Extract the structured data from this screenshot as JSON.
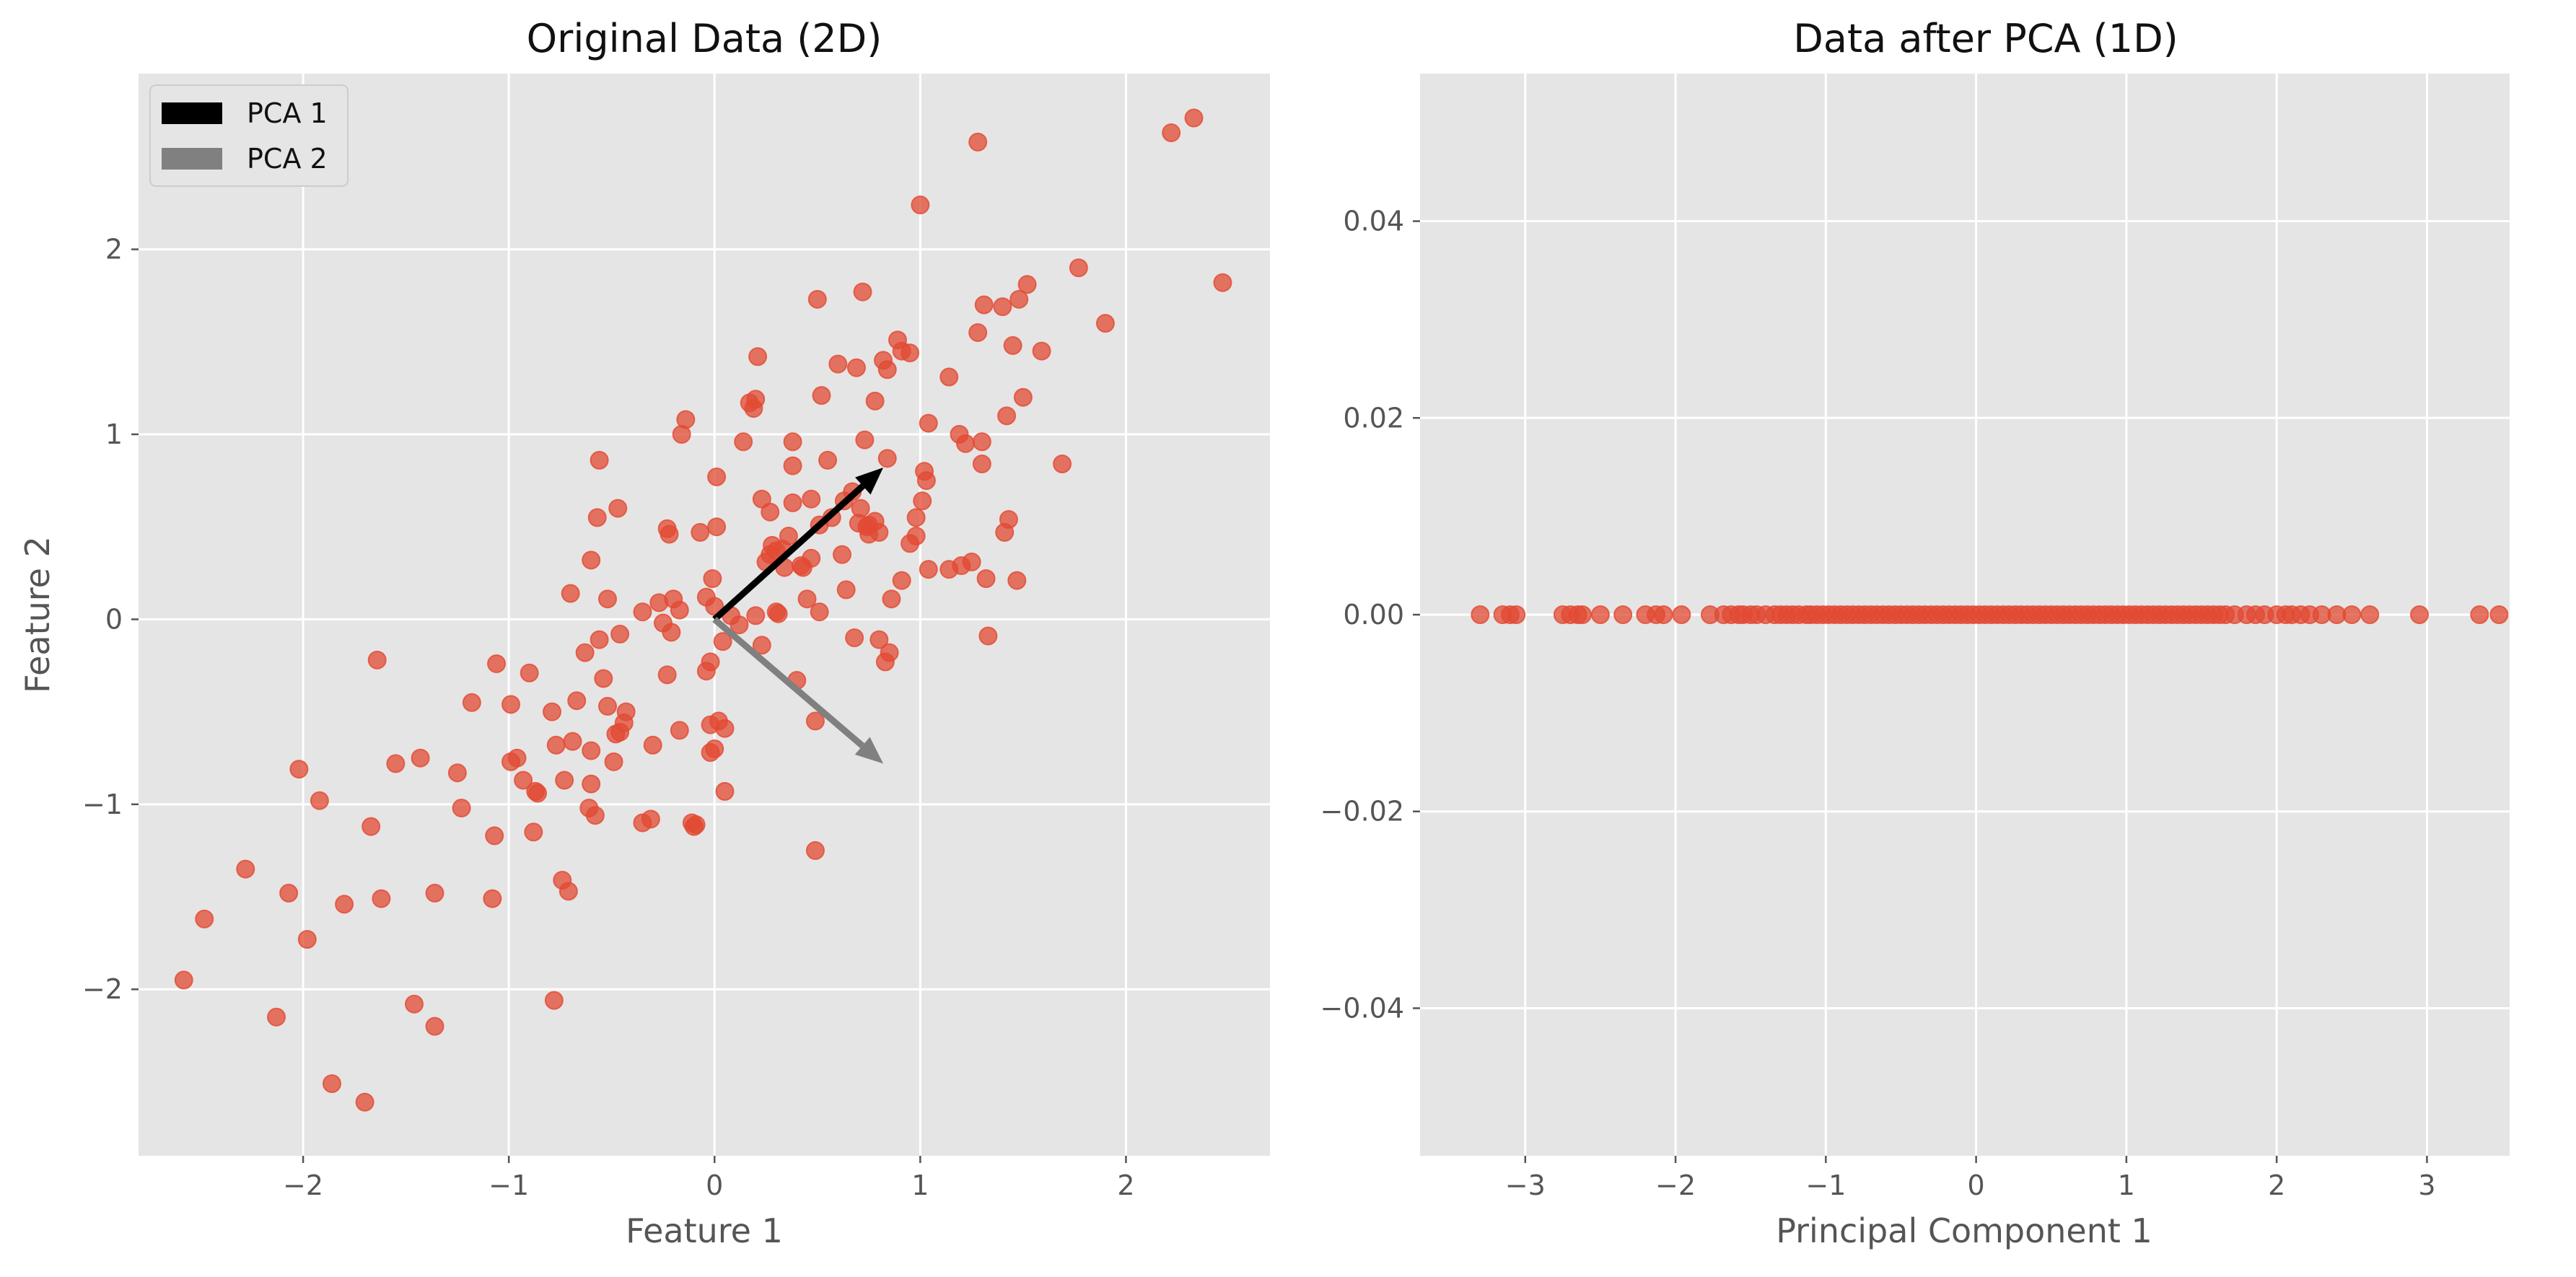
{
  "chart_data": [
    {
      "type": "scatter",
      "title": "Original Data (2D)",
      "xlabel": "Feature 1",
      "ylabel": "Feature 2",
      "xlim": [
        -2.8,
        2.7
      ],
      "ylim": [
        -2.9,
        2.95
      ],
      "xticks": [
        -2,
        -1,
        0,
        1,
        2
      ],
      "yticks": [
        -2,
        -1,
        0,
        1,
        2
      ],
      "xtick_labels": [
        "−2",
        "−1",
        "0",
        "1",
        "2"
      ],
      "ytick_labels": [
        "−2",
        "−1",
        "0",
        "1",
        "2"
      ],
      "grid": true,
      "legend": {
        "position": "top-left",
        "entries": [
          {
            "name": "PCA 1",
            "color": "#000000"
          },
          {
            "name": "PCA 2",
            "color": "#808080"
          }
        ]
      },
      "point_color": "#e24a33",
      "panel_color": "#e5e5e5",
      "vectors": [
        {
          "name": "PCA 1",
          "color": "#000000",
          "from": [
            0,
            0
          ],
          "to": [
            0.82,
            0.82
          ]
        },
        {
          "name": "PCA 2",
          "color": "#808080",
          "from": [
            0,
            0
          ],
          "to": [
            0.82,
            -0.78
          ]
        }
      ],
      "points": [
        [
          -2.58,
          -1.95
        ],
        [
          -2.48,
          -1.62
        ],
        [
          -2.28,
          -1.35
        ],
        [
          -2.13,
          -2.15
        ],
        [
          -2.07,
          -1.48
        ],
        [
          -2.02,
          -0.81
        ],
        [
          -1.98,
          -1.73
        ],
        [
          -1.92,
          -0.98
        ],
        [
          -1.86,
          -2.51
        ],
        [
          -1.8,
          -1.54
        ],
        [
          -1.7,
          -2.61
        ],
        [
          -1.67,
          -1.12
        ],
        [
          -1.64,
          -0.22
        ],
        [
          -1.62,
          -1.51
        ],
        [
          -1.55,
          -0.78
        ],
        [
          -1.46,
          -2.08
        ],
        [
          -1.43,
          -0.75
        ],
        [
          -1.36,
          -2.2
        ],
        [
          -1.36,
          -1.48
        ],
        [
          -1.25,
          -0.83
        ],
        [
          -1.23,
          -1.02
        ],
        [
          -1.18,
          -0.45
        ],
        [
          -1.08,
          -1.51
        ],
        [
          -1.07,
          -1.17
        ],
        [
          -1.06,
          -0.24
        ],
        [
          -0.99,
          -0.46
        ],
        [
          -0.99,
          -0.77
        ],
        [
          -0.96,
          -0.75
        ],
        [
          -0.93,
          -0.87
        ],
        [
          -0.9,
          -0.29
        ],
        [
          -0.88,
          -1.15
        ],
        [
          -0.87,
          -0.93
        ],
        [
          -0.86,
          -0.94
        ],
        [
          -0.79,
          -0.5
        ],
        [
          -0.78,
          -2.06
        ],
        [
          -0.77,
          -0.68
        ],
        [
          -0.74,
          -1.41
        ],
        [
          -0.73,
          -0.87
        ],
        [
          -0.71,
          -1.47
        ],
        [
          -0.7,
          0.14
        ],
        [
          -0.69,
          -0.66
        ],
        [
          -0.67,
          -0.44
        ],
        [
          -0.63,
          -0.18
        ],
        [
          -0.61,
          -1.02
        ],
        [
          -0.6,
          -0.71
        ],
        [
          -0.6,
          0.32
        ],
        [
          -0.6,
          -0.89
        ],
        [
          -0.58,
          -1.06
        ],
        [
          -0.57,
          0.55
        ],
        [
          -0.56,
          -0.11
        ],
        [
          -0.56,
          0.86
        ],
        [
          -0.54,
          -0.32
        ],
        [
          -0.52,
          -0.47
        ],
        [
          -0.52,
          0.11
        ],
        [
          -0.49,
          -0.77
        ],
        [
          -0.48,
          -0.62
        ],
        [
          -0.47,
          0.6
        ],
        [
          -0.46,
          -0.08
        ],
        [
          -0.46,
          -0.61
        ],
        [
          -0.44,
          -0.56
        ],
        [
          -0.43,
          -0.5
        ],
        [
          -0.35,
          0.04
        ],
        [
          -0.35,
          -1.1
        ],
        [
          -0.31,
          -1.08
        ],
        [
          -0.3,
          -0.68
        ],
        [
          -0.27,
          0.09
        ],
        [
          -0.25,
          -0.02
        ],
        [
          -0.23,
          -0.3
        ],
        [
          -0.23,
          0.49
        ],
        [
          -0.22,
          0.46
        ],
        [
          -0.21,
          -0.07
        ],
        [
          -0.2,
          0.11
        ],
        [
          -0.17,
          0.05
        ],
        [
          -0.17,
          -0.6
        ],
        [
          -0.16,
          1.0
        ],
        [
          -0.14,
          1.08
        ],
        [
          -0.11,
          -1.1
        ],
        [
          -0.1,
          -1.12
        ],
        [
          -0.09,
          -1.11
        ],
        [
          -0.07,
          0.47
        ],
        [
          -0.04,
          0.12
        ],
        [
          -0.04,
          -0.28
        ],
        [
          -0.02,
          -0.72
        ],
        [
          -0.02,
          -0.57
        ],
        [
          -0.02,
          -0.23
        ],
        [
          -0.01,
          0.22
        ],
        [
          0.0,
          -0.7
        ],
        [
          0.0,
          0.07
        ],
        [
          0.01,
          0.77
        ],
        [
          0.01,
          0.5
        ],
        [
          0.02,
          -0.55
        ],
        [
          0.04,
          -0.12
        ],
        [
          0.05,
          -0.59
        ],
        [
          0.05,
          -0.93
        ],
        [
          0.08,
          0.02
        ],
        [
          0.12,
          -0.03
        ],
        [
          0.14,
          0.96
        ],
        [
          0.17,
          1.17
        ],
        [
          0.19,
          1.14
        ],
        [
          0.2,
          0.02
        ],
        [
          0.2,
          1.19
        ],
        [
          0.21,
          1.42
        ],
        [
          0.23,
          0.65
        ],
        [
          0.23,
          -0.14
        ],
        [
          0.25,
          0.31
        ],
        [
          0.27,
          0.35
        ],
        [
          0.27,
          0.58
        ],
        [
          0.28,
          0.4
        ],
        [
          0.3,
          0.04
        ],
        [
          0.3,
          0.37
        ],
        [
          0.31,
          0.03
        ],
        [
          0.33,
          0.38
        ],
        [
          0.34,
          0.28
        ],
        [
          0.36,
          0.45
        ],
        [
          0.38,
          0.63
        ],
        [
          0.38,
          0.96
        ],
        [
          0.38,
          0.83
        ],
        [
          0.4,
          -0.33
        ],
        [
          0.42,
          0.29
        ],
        [
          0.43,
          0.28
        ],
        [
          0.45,
          0.11
        ],
        [
          0.47,
          0.33
        ],
        [
          0.47,
          0.65
        ],
        [
          0.49,
          -0.55
        ],
        [
          0.49,
          -1.25
        ],
        [
          0.5,
          1.73
        ],
        [
          0.51,
          0.51
        ],
        [
          0.51,
          0.04
        ],
        [
          0.52,
          1.21
        ],
        [
          0.55,
          0.86
        ],
        [
          0.57,
          0.55
        ],
        [
          0.6,
          1.38
        ],
        [
          0.62,
          0.35
        ],
        [
          0.63,
          0.64
        ],
        [
          0.64,
          0.16
        ],
        [
          0.67,
          0.69
        ],
        [
          0.68,
          -0.1
        ],
        [
          0.69,
          1.36
        ],
        [
          0.7,
          0.52
        ],
        [
          0.71,
          0.6
        ],
        [
          0.72,
          1.77
        ],
        [
          0.73,
          0.97
        ],
        [
          0.74,
          0.5
        ],
        [
          0.75,
          0.51
        ],
        [
          0.75,
          0.46
        ],
        [
          0.78,
          0.53
        ],
        [
          0.78,
          1.18
        ],
        [
          0.8,
          -0.11
        ],
        [
          0.8,
          0.47
        ],
        [
          0.82,
          1.4
        ],
        [
          0.83,
          -0.23
        ],
        [
          0.84,
          0.87
        ],
        [
          0.84,
          1.35
        ],
        [
          0.85,
          -0.18
        ],
        [
          0.86,
          0.11
        ],
        [
          0.89,
          1.51
        ],
        [
          0.91,
          0.21
        ],
        [
          0.91,
          1.45
        ],
        [
          0.95,
          0.41
        ],
        [
          0.95,
          1.44
        ],
        [
          0.98,
          0.55
        ],
        [
          0.98,
          0.45
        ],
        [
          1.0,
          2.24
        ],
        [
          1.01,
          0.64
        ],
        [
          1.02,
          0.8
        ],
        [
          1.03,
          0.75
        ],
        [
          1.04,
          1.06
        ],
        [
          1.04,
          0.27
        ],
        [
          1.14,
          0.27
        ],
        [
          1.14,
          1.31
        ],
        [
          1.19,
          1.0
        ],
        [
          1.2,
          0.29
        ],
        [
          1.22,
          0.95
        ],
        [
          1.25,
          0.31
        ],
        [
          1.28,
          1.55
        ],
        [
          1.28,
          2.58
        ],
        [
          1.3,
          0.96
        ],
        [
          1.3,
          0.84
        ],
        [
          1.31,
          1.7
        ],
        [
          1.32,
          0.22
        ],
        [
          1.33,
          -0.09
        ],
        [
          1.4,
          1.69
        ],
        [
          1.41,
          0.47
        ],
        [
          1.42,
          1.1
        ],
        [
          1.43,
          0.54
        ],
        [
          1.45,
          1.48
        ],
        [
          1.47,
          0.21
        ],
        [
          1.48,
          1.73
        ],
        [
          1.5,
          1.2
        ],
        [
          1.52,
          1.81
        ],
        [
          1.59,
          1.45
        ],
        [
          1.69,
          0.84
        ],
        [
          1.77,
          1.9
        ],
        [
          1.9,
          1.6
        ],
        [
          2.22,
          2.63
        ],
        [
          2.33,
          2.71
        ],
        [
          2.47,
          1.82
        ]
      ]
    },
    {
      "type": "scatter",
      "title": "Data after PCA (1D)",
      "xlabel": "Principal Component 1",
      "ylabel": "",
      "xlim": [
        -3.7,
        3.55
      ],
      "ylim": [
        -0.055,
        0.055
      ],
      "xticks": [
        -3,
        -2,
        -1,
        0,
        1,
        2,
        3
      ],
      "yticks": [
        -0.04,
        -0.02,
        0.0,
        0.02,
        0.04
      ],
      "xtick_labels": [
        "−3",
        "−2",
        "−1",
        "0",
        "1",
        "2",
        "3"
      ],
      "ytick_labels": [
        "−0.04",
        "−0.02",
        "0.00",
        "0.02",
        "0.04"
      ],
      "grid": true,
      "point_color": "#e24a33",
      "panel_color": "#e5e5e5",
      "x": [
        -3.3,
        -3.15,
        -3.1,
        -3.06,
        -2.75,
        -2.7,
        -2.65,
        -2.62,
        -2.5,
        -2.35,
        -2.2,
        -2.13,
        -2.08,
        -1.96,
        -1.77,
        -1.68,
        -1.63,
        -1.58,
        -1.55,
        -1.5,
        -1.46,
        -1.4,
        -1.34,
        -1.3,
        -1.26,
        -1.22,
        -1.18,
        -1.13,
        -1.1,
        -1.06,
        -1.02,
        -0.98,
        -0.94,
        -0.9,
        -0.86,
        -0.82,
        -0.78,
        -0.74,
        -0.7,
        -0.66,
        -0.62,
        -0.58,
        -0.54,
        -0.5,
        -0.46,
        -0.42,
        -0.38,
        -0.34,
        -0.3,
        -0.26,
        -0.22,
        -0.18,
        -0.14,
        -0.1,
        -0.06,
        -0.02,
        0.02,
        0.06,
        0.1,
        0.14,
        0.18,
        0.22,
        0.26,
        0.3,
        0.34,
        0.38,
        0.42,
        0.46,
        0.5,
        0.54,
        0.58,
        0.62,
        0.66,
        0.7,
        0.74,
        0.78,
        0.82,
        0.86,
        0.9,
        0.94,
        0.98,
        1.02,
        1.06,
        1.1,
        1.14,
        1.18,
        1.22,
        1.26,
        1.3,
        1.34,
        1.38,
        1.42,
        1.46,
        1.5,
        1.54,
        1.58,
        1.62,
        1.66,
        1.72,
        1.8,
        1.86,
        1.92,
        2.0,
        2.06,
        2.1,
        2.16,
        2.22,
        2.3,
        2.4,
        2.5,
        2.62,
        2.95,
        3.35,
        3.48
      ],
      "y_constant": 0.0
    }
  ]
}
